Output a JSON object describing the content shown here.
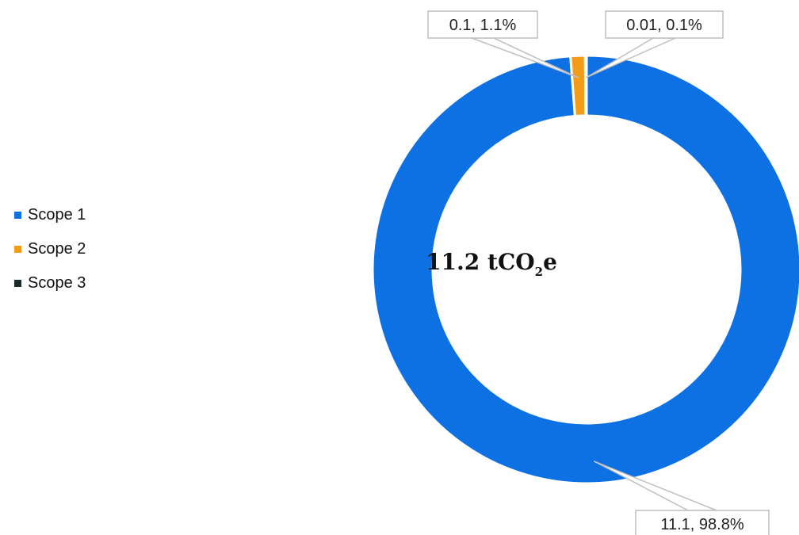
{
  "chart_data": {
    "type": "pie",
    "donut": true,
    "title": "",
    "center_label": {
      "value": "11.2",
      "unit_prefix": "tCO",
      "unit_subscript": "2",
      "unit_suffix": "e"
    },
    "legend_position": "left",
    "categories": [
      "Scope 1",
      "Scope 2",
      "Scope 3"
    ],
    "values": [
      11.1,
      0.1,
      0.01
    ],
    "percentages": [
      98.8,
      1.1,
      0.1
    ],
    "data_labels": [
      "11.1, 98.8%",
      "0.1, 1.1%",
      "0.01, 0.1%"
    ],
    "colors": [
      "#0d70e3",
      "#f39c1a",
      "#1b2a2a"
    ]
  }
}
